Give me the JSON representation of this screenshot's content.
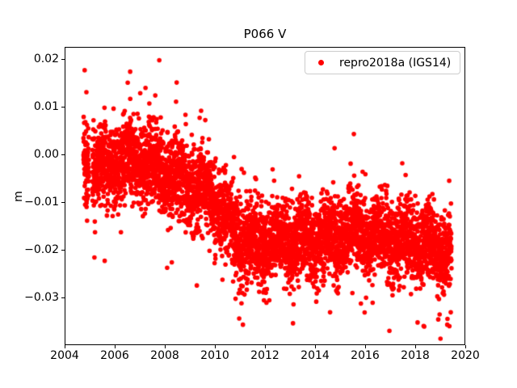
{
  "chart_data": {
    "type": "scatter",
    "title": "P066 V",
    "xlabel": "",
    "ylabel": "m",
    "grid": false,
    "background": "#ffffff",
    "axis_color": "#000000",
    "xlim": [
      2004,
      2020
    ],
    "ylim": [
      -0.0399,
      0.0227
    ],
    "xticks": [
      2004,
      2006,
      2008,
      2010,
      2012,
      2014,
      2016,
      2018,
      2020
    ],
    "xtick_labels": [
      "2004",
      "2006",
      "2008",
      "2010",
      "2012",
      "2014",
      "2016",
      "2018",
      "2020"
    ],
    "yticks": [
      0.02,
      0.01,
      0.0,
      -0.01,
      -0.02,
      -0.03
    ],
    "ytick_labels": [
      "0.02",
      "0.01",
      "0.00",
      "−0.01",
      "−0.02",
      "−0.03"
    ],
    "legend": {
      "position": "upper-right",
      "border_color": "#cccccc",
      "entries": [
        {
          "label": "repro2018a (IGS14)",
          "color": "#ff0000",
          "marker": "circle"
        }
      ]
    },
    "series": [
      {
        "name": "repro2018a (IGS14)",
        "color": "#ff0000",
        "marker": "dot",
        "marker_radius_px": 2.8,
        "generation": {
          "t_start": 2004.75,
          "t_end": 2019.45,
          "points_per_year": 350,
          "seed": 20180614,
          "trend": [
            [
              2004.75,
              -0.001
            ],
            [
              2005.3,
              -0.003
            ],
            [
              2005.8,
              -0.0025
            ],
            [
              2006.2,
              -0.0012
            ],
            [
              2006.7,
              -0.0008
            ],
            [
              2007.2,
              -0.0015
            ],
            [
              2007.8,
              -0.0025
            ],
            [
              2008.4,
              -0.0048
            ],
            [
              2009.0,
              -0.0065
            ],
            [
              2009.6,
              -0.008
            ],
            [
              2010.0,
              -0.01
            ],
            [
              2010.35,
              -0.013
            ],
            [
              2010.7,
              -0.016
            ],
            [
              2011.1,
              -0.018
            ],
            [
              2012.0,
              -0.0188
            ],
            [
              2013.0,
              -0.0182
            ],
            [
              2014.0,
              -0.0178
            ],
            [
              2015.0,
              -0.0168
            ],
            [
              2015.7,
              -0.0163
            ],
            [
              2016.5,
              -0.0175
            ],
            [
              2017.5,
              -0.0182
            ],
            [
              2018.5,
              -0.0188
            ],
            [
              2019.0,
              -0.0195
            ],
            [
              2019.45,
              -0.021
            ]
          ],
          "seasonal_amplitude": 0.0016,
          "seasonal_peak": 0.55,
          "noise_sigma": 0.0041,
          "mid_outlier_fraction": 0.07,
          "mid_outlier_sigma": 0.0068,
          "big_outlier_fraction": 0.005,
          "big_outlier_sigma": 0.0105,
          "gaps": [
            [
              2004.97,
              2005.1
            ]
          ]
        },
        "notable_points": [
          [
            2004.8,
            0.0178
          ],
          [
            2004.87,
            0.0132
          ],
          [
            2005.19,
            -0.0215
          ],
          [
            2005.6,
            -0.0222
          ],
          [
            2006.52,
            0.0152
          ],
          [
            2006.62,
            0.0118
          ],
          [
            2007.02,
            0.013
          ],
          [
            2007.23,
            0.0141
          ],
          [
            2007.78,
            0.0199
          ],
          [
            2007.62,
            0.0125
          ],
          [
            2008.45,
            0.0112
          ],
          [
            2008.28,
            -0.0225
          ],
          [
            2009.45,
            0.0093
          ],
          [
            2010.95,
            -0.029
          ],
          [
            2011.12,
            -0.0356
          ],
          [
            2012.06,
            -0.031
          ],
          [
            2013.12,
            -0.0353
          ],
          [
            2014.6,
            -0.033
          ],
          [
            2015.55,
            0.0044
          ],
          [
            2015.42,
            -0.0018
          ],
          [
            2015.9,
            -0.0035
          ],
          [
            2016.3,
            -0.031
          ],
          [
            2016.97,
            -0.0369
          ],
          [
            2018.36,
            -0.036
          ],
          [
            2018.92,
            -0.0345
          ],
          [
            2019.28,
            -0.0356
          ],
          [
            2019.42,
            -0.033
          ]
        ]
      }
    ]
  }
}
